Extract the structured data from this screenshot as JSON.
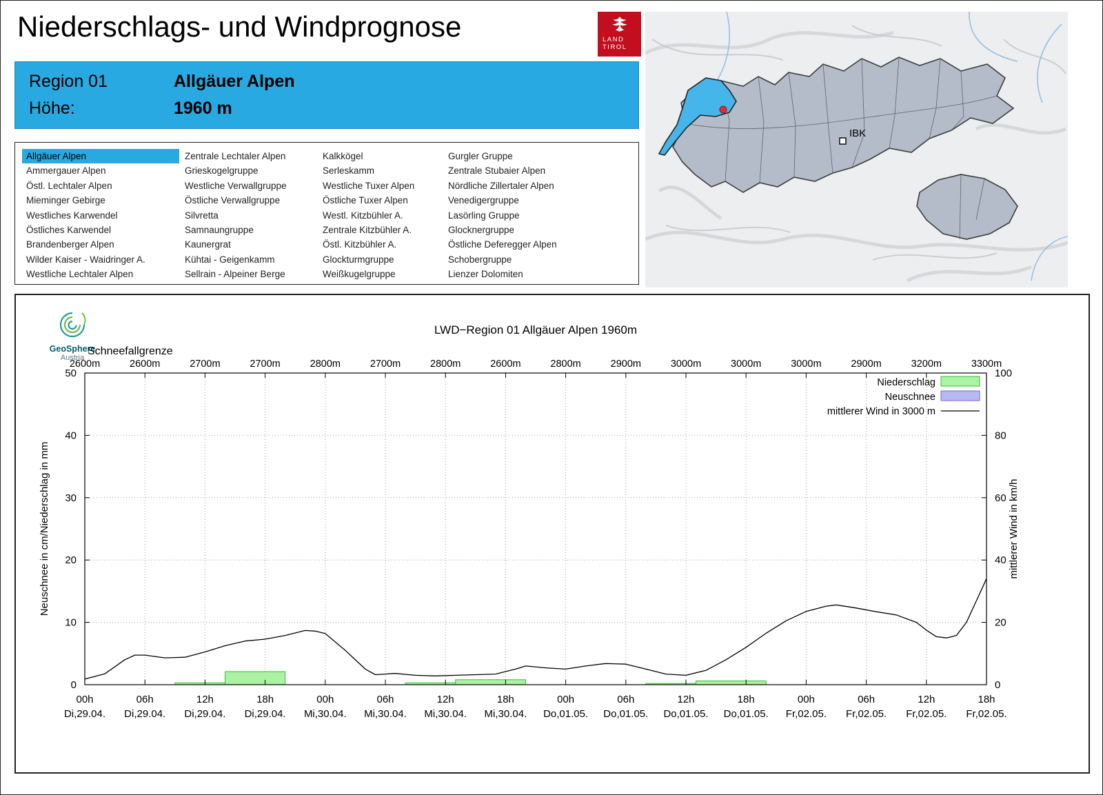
{
  "header": {
    "title": "Niederschlags- und Windprognose",
    "logo": {
      "line1": "LAND",
      "line2": "TIROL"
    }
  },
  "region_info": {
    "region_label": "Region 01",
    "region_name": "Allgäuer Alpen",
    "altitude_label": "Höhe:",
    "altitude_value": "1960 m"
  },
  "region_list": {
    "selected": "Allgäuer Alpen",
    "columns": [
      [
        "Allgäuer Alpen",
        "Ammergauer Alpen",
        "Östl. Lechtaler Alpen",
        "Mieminger Gebirge",
        "Westliches Karwendel",
        "Östliches Karwendel",
        "Brandenberger Alpen",
        "Wilder Kaiser - Waidringer A.",
        "Westliche Lechtaler Alpen"
      ],
      [
        "Zentrale Lechtaler Alpen",
        "Grieskogelgruppe",
        "Westliche Verwallgruppe",
        "Östliche Verwallgruppe",
        "Silvretta",
        "Samnaungruppe",
        "Kaunergrat",
        "Kühtai - Geigenkamm",
        "Sellrain - Alpeiner Berge"
      ],
      [
        "Kalkkögel",
        "Serleskamm",
        "Westliche Tuxer Alpen",
        "Östliche Tuxer Alpen",
        "Westl. Kitzbühler A.",
        "Zentrale Kitzbühler A.",
        "Östl. Kitzbühler A.",
        "Glockturmgruppe",
        "Weißkugelgruppe"
      ],
      [
        "Gurgler Gruppe",
        "Zentrale Stubaier Alpen",
        "Nördliche Zillertaler Alpen",
        "Venedigergruppe",
        "Lasörling Gruppe",
        "Glocknergruppe",
        "Östliche Deferegger Alpen",
        "Schobergruppe",
        "Lienzer Dolomiten"
      ]
    ]
  },
  "map": {
    "city_label": "IBK"
  },
  "geosphere": {
    "name": "GeoSphere",
    "country": "Austria"
  },
  "chart_data": {
    "type": "line+bar",
    "title": "LWD−Region 01 Allgäuer Alpen 1960m",
    "snowline_label": "Schneefallgrenze",
    "snowline_values": [
      "2600m",
      "2600m",
      "2700m",
      "2700m",
      "2800m",
      "2700m",
      "2800m",
      "2600m",
      "2800m",
      "2900m",
      "3000m",
      "3000m",
      "3000m",
      "2900m",
      "3200m",
      "3300m"
    ],
    "x_range": [
      0,
      90
    ],
    "x_tick_hours": [
      0,
      6,
      12,
      18,
      24,
      30,
      36,
      42,
      48,
      54,
      60,
      66,
      72,
      78,
      84,
      90
    ],
    "x_ticks": [
      {
        "hour": "00h",
        "date": "Di,29.04."
      },
      {
        "hour": "06h",
        "date": "Di,29.04."
      },
      {
        "hour": "12h",
        "date": "Di,29.04."
      },
      {
        "hour": "18h",
        "date": "Di,29.04."
      },
      {
        "hour": "00h",
        "date": "Mi,30.04."
      },
      {
        "hour": "06h",
        "date": "Mi,30.04."
      },
      {
        "hour": "12h",
        "date": "Mi,30.04."
      },
      {
        "hour": "18h",
        "date": "Mi,30.04."
      },
      {
        "hour": "00h",
        "date": "Do,01.05."
      },
      {
        "hour": "06h",
        "date": "Do,01.05."
      },
      {
        "hour": "12h",
        "date": "Do,01.05."
      },
      {
        "hour": "18h",
        "date": "Do,01.05."
      },
      {
        "hour": "00h",
        "date": "Fr,02.05."
      },
      {
        "hour": "06h",
        "date": "Fr,02.05."
      },
      {
        "hour": "12h",
        "date": "Fr,02.05."
      },
      {
        "hour": "18h",
        "date": "Fr,02.05."
      }
    ],
    "ylabel_left": "Neuschnee in cm/Niederschlag in mm",
    "ylabel_right": "mittlerer Wind in km/h",
    "ylim_left": [
      0,
      50
    ],
    "ylim_right": [
      0,
      100
    ],
    "yticks_left": [
      0,
      10,
      20,
      30,
      40,
      50
    ],
    "yticks_right": [
      0,
      20,
      40,
      60,
      80,
      100
    ],
    "colors": {
      "precip_fill": "#abf2a2",
      "precip_edge": "#3dbb3d",
      "snow_fill": "#b9b9f2",
      "snow_edge": "#6a6ad0",
      "wind_line": "#000000",
      "grid": "#999999",
      "accent_blue": "#29a9e1"
    },
    "legend": [
      {
        "label": "Niederschlag",
        "type": "bar",
        "fill": "#abf2a2",
        "edge": "#3dbb3d"
      },
      {
        "label": "Neuschnee",
        "type": "bar",
        "fill": "#b9b9f2",
        "edge": "#6a6ad0"
      },
      {
        "label": "mittlerer Wind in 3000 m",
        "type": "line",
        "color": "#000000"
      }
    ],
    "precip_segments": [
      {
        "start_h": 9,
        "end_h": 14,
        "value": 0.3
      },
      {
        "start_h": 14,
        "end_h": 20,
        "value": 2.1
      },
      {
        "start_h": 32,
        "end_h": 37,
        "value": 0.3
      },
      {
        "start_h": 37,
        "end_h": 44,
        "value": 0.8
      },
      {
        "start_h": 56,
        "end_h": 61,
        "value": 0.2
      },
      {
        "start_h": 61,
        "end_h": 68,
        "value": 0.6
      }
    ],
    "neuschnee_segments": [],
    "wind_points": [
      [
        0,
        1.8
      ],
      [
        2,
        3.5
      ],
      [
        4,
        8
      ],
      [
        5,
        9.5
      ],
      [
        6,
        9.5
      ],
      [
        8,
        8.6
      ],
      [
        10,
        8.8
      ],
      [
        12,
        10.5
      ],
      [
        14,
        12.5
      ],
      [
        16,
        14
      ],
      [
        18,
        14.6
      ],
      [
        20,
        15.8
      ],
      [
        22,
        17.4
      ],
      [
        23,
        17.2
      ],
      [
        24,
        16.4
      ],
      [
        26,
        11
      ],
      [
        28,
        5
      ],
      [
        29,
        3.2
      ],
      [
        31,
        3.6
      ],
      [
        33,
        3
      ],
      [
        35,
        2.8
      ],
      [
        37,
        3
      ],
      [
        39,
        3.2
      ],
      [
        41,
        3.4
      ],
      [
        43,
        5
      ],
      [
        44,
        6
      ],
      [
        46,
        5.4
      ],
      [
        48,
        5
      ],
      [
        50,
        6
      ],
      [
        52,
        6.8
      ],
      [
        54,
        6.6
      ],
      [
        56,
        5
      ],
      [
        58,
        3.4
      ],
      [
        60,
        3
      ],
      [
        62,
        4.6
      ],
      [
        64,
        8
      ],
      [
        66,
        12
      ],
      [
        68,
        16.5
      ],
      [
        70,
        20.5
      ],
      [
        72,
        23.5
      ],
      [
        74,
        25.2
      ],
      [
        75,
        25.6
      ],
      [
        77,
        24.6
      ],
      [
        79,
        23.4
      ],
      [
        81,
        22.4
      ],
      [
        83,
        20
      ],
      [
        84,
        17.5
      ],
      [
        85,
        15.4
      ],
      [
        86,
        15
      ],
      [
        87,
        15.8
      ],
      [
        88,
        20
      ],
      [
        89,
        27
      ],
      [
        90,
        34
      ]
    ]
  }
}
